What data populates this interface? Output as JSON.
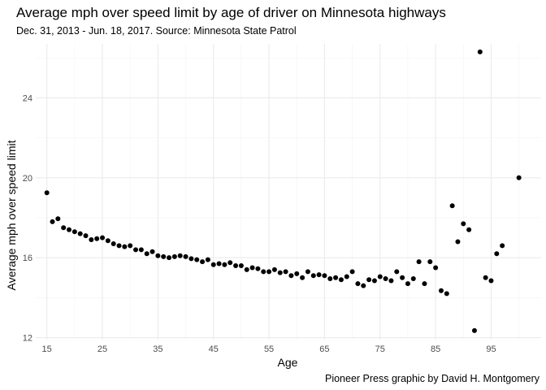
{
  "chart_data": {
    "type": "scatter",
    "title": "Average mph over speed limit by age of driver on Minnesota highways",
    "subtitle": "Dec. 31, 2013 - Jun. 18, 2017. Source: Minnesota State Patrol",
    "caption": "Pioneer Press graphic by David H. Montgomery",
    "xlabel": "Age",
    "ylabel": "Average mph over speed limit",
    "xlim": [
      13,
      104
    ],
    "ylim": [
      11.9,
      26.7
    ],
    "x_ticks": [
      15,
      25,
      35,
      45,
      55,
      65,
      75,
      85,
      95
    ],
    "y_ticks": [
      12,
      16,
      20,
      24
    ],
    "grid": true,
    "legend": "none",
    "point_color": "#000000",
    "points": [
      [
        15,
        19.25
      ],
      [
        16,
        17.8
      ],
      [
        17,
        17.95
      ],
      [
        18,
        17.5
      ],
      [
        19,
        17.4
      ],
      [
        20,
        17.3
      ],
      [
        21,
        17.2
      ],
      [
        22,
        17.1
      ],
      [
        23,
        16.9
      ],
      [
        24,
        16.95
      ],
      [
        25,
        17.0
      ],
      [
        26,
        16.85
      ],
      [
        27,
        16.7
      ],
      [
        28,
        16.6
      ],
      [
        29,
        16.55
      ],
      [
        30,
        16.6
      ],
      [
        31,
        16.4
      ],
      [
        32,
        16.4
      ],
      [
        33,
        16.2
      ],
      [
        34,
        16.3
      ],
      [
        35,
        16.1
      ],
      [
        36,
        16.05
      ],
      [
        37,
        16.0
      ],
      [
        38,
        16.05
      ],
      [
        39,
        16.1
      ],
      [
        40,
        16.05
      ],
      [
        41,
        15.95
      ],
      [
        42,
        15.9
      ],
      [
        43,
        15.8
      ],
      [
        44,
        15.9
      ],
      [
        45,
        15.65
      ],
      [
        46,
        15.7
      ],
      [
        47,
        15.65
      ],
      [
        48,
        15.75
      ],
      [
        49,
        15.6
      ],
      [
        50,
        15.6
      ],
      [
        51,
        15.4
      ],
      [
        52,
        15.5
      ],
      [
        53,
        15.45
      ],
      [
        54,
        15.3
      ],
      [
        55,
        15.3
      ],
      [
        56,
        15.4
      ],
      [
        57,
        15.25
      ],
      [
        58,
        15.3
      ],
      [
        59,
        15.1
      ],
      [
        60,
        15.2
      ],
      [
        61,
        15.0
      ],
      [
        62,
        15.3
      ],
      [
        63,
        15.1
      ],
      [
        64,
        15.15
      ],
      [
        65,
        15.1
      ],
      [
        66,
        14.95
      ],
      [
        67,
        15.0
      ],
      [
        68,
        14.9
      ],
      [
        69,
        15.05
      ],
      [
        70,
        15.3
      ],
      [
        71,
        14.7
      ],
      [
        72,
        14.6
      ],
      [
        73,
        14.9
      ],
      [
        74,
        14.85
      ],
      [
        75,
        15.05
      ],
      [
        76,
        14.95
      ],
      [
        77,
        14.85
      ],
      [
        78,
        15.3
      ],
      [
        79,
        15.0
      ],
      [
        80,
        14.7
      ],
      [
        81,
        14.95
      ],
      [
        82,
        15.8
      ],
      [
        83,
        14.7
      ],
      [
        84,
        15.8
      ],
      [
        85,
        15.5
      ],
      [
        86,
        14.35
      ],
      [
        87,
        14.2
      ],
      [
        88,
        18.6
      ],
      [
        89,
        16.8
      ],
      [
        90,
        17.7
      ],
      [
        91,
        17.4
      ],
      [
        92,
        12.35
      ],
      [
        93,
        26.3
      ],
      [
        94,
        15.0
      ],
      [
        95,
        14.85
      ],
      [
        96,
        16.2
      ],
      [
        97,
        16.6
      ],
      [
        100,
        20.0
      ]
    ]
  }
}
